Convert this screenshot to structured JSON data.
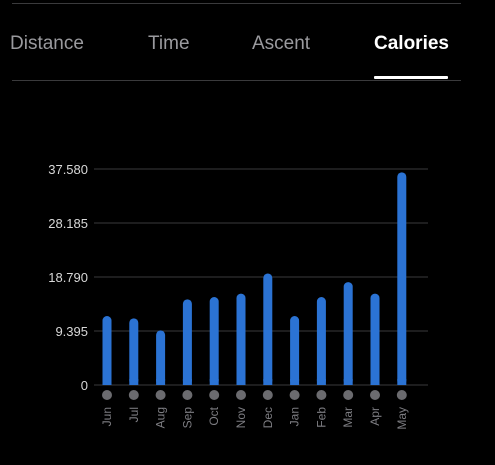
{
  "tabs": {
    "distance": "Distance",
    "time": "Time",
    "ascent": "Ascent",
    "calories": "Calories",
    "active": "calories"
  },
  "colors": {
    "background": "#000000",
    "bar": "#2b73d4",
    "grid": "#3a3a3c",
    "tick_label": "#d8d8d8",
    "month_label": "#7d7d82",
    "dot": "#6b6b6f",
    "inactive_tab": "#9a9a9e",
    "active_tab": "#ffffff"
  },
  "chart_data": {
    "type": "bar",
    "categories": [
      "Jun",
      "Jul",
      "Aug",
      "Sep",
      "Oct",
      "Nov",
      "Dec",
      "Jan",
      "Feb",
      "Mar",
      "Apr",
      "May"
    ],
    "values": [
      12.0,
      11.6,
      9.5,
      14.9,
      15.3,
      15.9,
      19.4,
      12.0,
      15.3,
      17.9,
      15.9,
      37.0
    ],
    "y_ticks": [
      "0",
      "9.395",
      "18.790",
      "28.185",
      "37.580"
    ],
    "ylim": [
      0,
      37.58
    ],
    "grid": true,
    "title": "",
    "xlabel": "",
    "ylabel": ""
  }
}
